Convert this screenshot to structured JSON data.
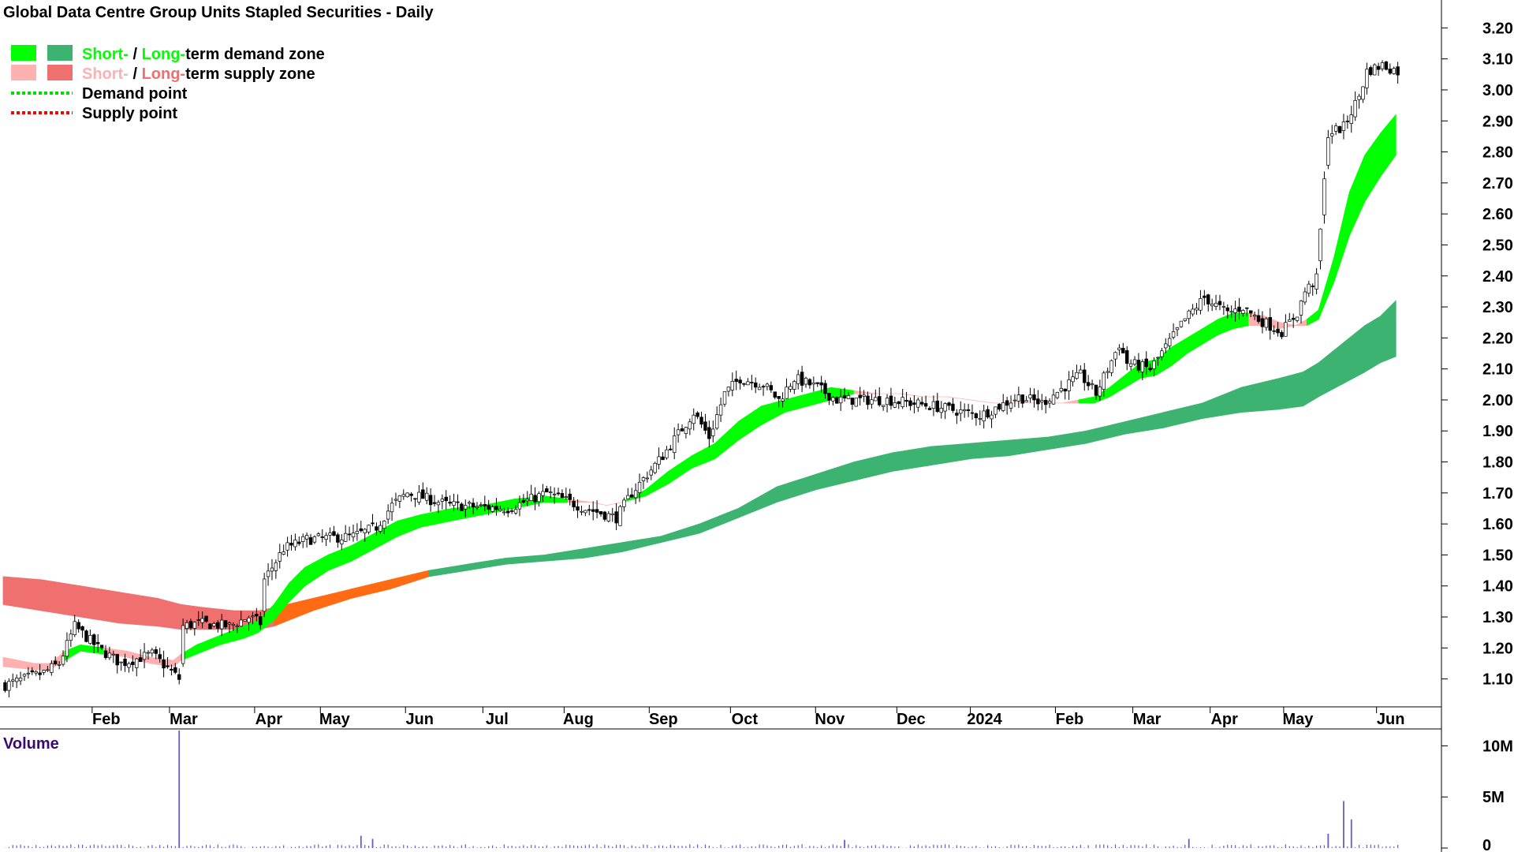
{
  "chart_data": {
    "type": "candlestick",
    "title": "Global Data Centre Group Units Stapled Securities - Daily",
    "price_axis": {
      "ticks": [
        1.1,
        1.2,
        1.3,
        1.4,
        1.5,
        1.6,
        1.7,
        1.8,
        1.9,
        2.0,
        2.1,
        2.2,
        2.3,
        2.4,
        2.5,
        2.6,
        2.7,
        2.8,
        2.9,
        3.0,
        3.1,
        3.2
      ],
      "tick_labels": [
        "1.10",
        "1.20",
        "1.30",
        "1.40",
        "1.50",
        "1.60",
        "1.70",
        "1.80",
        "1.90",
        "2.00",
        "2.10",
        "2.20",
        "2.30",
        "2.40",
        "2.50",
        "2.60",
        "2.70",
        "2.80",
        "2.90",
        "3.00",
        "3.10",
        "3.20"
      ],
      "range": [
        1.01,
        3.29
      ]
    },
    "time_axis": {
      "labels": [
        "Feb",
        "Mar",
        "Apr",
        "May",
        "Jun",
        "Jul",
        "Aug",
        "Sep",
        "Oct",
        "Nov",
        "Dec",
        "2024",
        "Feb",
        "Mar",
        "Apr",
        "May",
        "Jun"
      ],
      "label_pos": [
        23,
        43,
        65,
        82,
        104,
        124,
        145,
        167,
        188,
        210,
        231,
        250,
        272,
        292,
        312,
        331,
        355
      ],
      "bars": 362
    },
    "legend": {
      "position": "top-left",
      "items": [
        {
          "kind": "zone",
          "colors": [
            "#00ff00",
            "#3cb371"
          ],
          "parts": [
            {
              "text": "Short-",
              "color": "#00ff00"
            },
            {
              "text": " / ",
              "color": "#000000"
            },
            {
              "text": "Long-",
              "color": "#00ff00"
            },
            {
              "text": "term demand zone",
              "color": "#000000"
            }
          ]
        },
        {
          "kind": "zone",
          "colors": [
            "#ffb0b0",
            "#f07070"
          ],
          "parts": [
            {
              "text": "Short-",
              "color": "#ffb0b0"
            },
            {
              "text": " / ",
              "color": "#000000"
            },
            {
              "text": "Long-",
              "color": "#f07070"
            },
            {
              "text": "term supply zone",
              "color": "#000000"
            }
          ]
        },
        {
          "kind": "dotted",
          "color": "#00dd00",
          "parts": [
            {
              "text": "Demand point",
              "color": "#000000"
            }
          ]
        },
        {
          "kind": "dotted",
          "color": "#ff0000",
          "parts": [
            {
              "text": "Supply point",
              "color": "#000000"
            }
          ]
        }
      ]
    },
    "price_anchors": {
      "x": [
        0,
        10,
        14,
        18,
        24,
        30,
        38,
        45,
        46,
        50,
        58,
        63,
        66,
        67,
        72,
        78,
        90,
        96,
        100,
        104,
        115,
        130,
        140,
        150,
        158,
        162,
        170,
        178,
        182,
        186,
        190,
        196,
        200,
        204,
        210,
        215,
        222,
        228,
        240,
        252,
        262,
        268,
        278,
        282,
        288,
        290,
        296,
        300,
        305,
        310,
        316,
        320,
        324,
        330,
        334,
        336,
        339,
        342,
        346,
        350,
        352,
        356,
        360
      ],
      "close": [
        1.08,
        1.12,
        1.15,
        1.27,
        1.2,
        1.15,
        1.18,
        1.1,
        1.27,
        1.28,
        1.27,
        1.3,
        1.28,
        1.42,
        1.52,
        1.55,
        1.56,
        1.59,
        1.66,
        1.7,
        1.66,
        1.65,
        1.7,
        1.65,
        1.62,
        1.7,
        1.82,
        1.96,
        1.88,
        2.02,
        2.07,
        2.05,
        2.0,
        2.07,
        2.04,
        2.0,
        2.0,
        2.0,
        1.98,
        1.95,
        2.01,
        1.99,
        2.08,
        2.02,
        2.18,
        2.12,
        2.1,
        2.17,
        2.26,
        2.33,
        2.28,
        2.3,
        2.26,
        2.22,
        2.28,
        2.35,
        2.39,
        2.86,
        2.88,
        2.98,
        3.06,
        3.08,
        3.06
      ]
    },
    "bands": {
      "short_term": {
        "x": [
          0,
          8,
          12,
          16,
          20,
          26,
          32,
          38,
          44,
          46,
          50,
          56,
          62,
          66,
          70,
          74,
          78,
          84,
          90,
          96,
          102,
          108,
          116,
          124,
          132,
          140,
          146,
          152,
          156,
          160,
          166,
          172,
          178,
          184,
          190,
          196,
          202,
          208,
          214,
          220,
          226,
          232,
          238,
          244,
          250,
          256,
          262,
          268,
          274,
          278,
          282,
          286,
          290,
          294,
          298,
          302,
          306,
          310,
          314,
          318,
          322,
          326,
          330,
          334,
          337,
          340,
          344,
          348,
          352,
          356,
          360
        ],
        "upper": [
          1.17,
          1.15,
          1.15,
          1.19,
          1.21,
          1.2,
          1.19,
          1.17,
          1.16,
          1.18,
          1.21,
          1.24,
          1.27,
          1.29,
          1.34,
          1.41,
          1.46,
          1.5,
          1.53,
          1.57,
          1.61,
          1.63,
          1.65,
          1.66,
          1.68,
          1.69,
          1.68,
          1.67,
          1.66,
          1.67,
          1.71,
          1.77,
          1.82,
          1.86,
          1.93,
          1.98,
          2.0,
          2.02,
          2.04,
          2.03,
          2.02,
          2.02,
          2.01,
          2.01,
          2.0,
          1.99,
          1.99,
          1.99,
          1.99,
          2.0,
          2.01,
          2.04,
          2.08,
          2.12,
          2.13,
          2.17,
          2.2,
          2.23,
          2.26,
          2.28,
          2.28,
          2.27,
          2.25,
          2.24,
          2.26,
          2.29,
          2.46,
          2.67,
          2.79,
          2.86,
          2.92
        ],
        "lower": [
          1.14,
          1.13,
          1.13,
          1.16,
          1.19,
          1.18,
          1.17,
          1.15,
          1.14,
          1.16,
          1.18,
          1.21,
          1.23,
          1.25,
          1.29,
          1.35,
          1.4,
          1.45,
          1.48,
          1.52,
          1.56,
          1.59,
          1.61,
          1.63,
          1.65,
          1.67,
          1.67,
          1.67,
          1.66,
          1.67,
          1.69,
          1.73,
          1.78,
          1.81,
          1.87,
          1.92,
          1.96,
          1.98,
          2.0,
          2.02,
          2.02,
          2.02,
          2.01,
          2.01,
          2.0,
          1.99,
          1.99,
          1.99,
          1.99,
          1.99,
          1.99,
          2.01,
          2.04,
          2.07,
          2.08,
          2.11,
          2.15,
          2.18,
          2.21,
          2.23,
          2.24,
          2.24,
          2.23,
          2.24,
          2.24,
          2.26,
          2.38,
          2.53,
          2.64,
          2.72,
          2.79
        ],
        "state": [
          "s",
          "s",
          "s",
          "d",
          "d",
          "s",
          "s",
          "s",
          "s",
          "d",
          "d",
          "d",
          "d",
          "d",
          "d",
          "d",
          "d",
          "d",
          "d",
          "d",
          "d",
          "d",
          "d",
          "d",
          "d",
          "d",
          "s",
          "s",
          "s",
          "d",
          "d",
          "d",
          "d",
          "d",
          "d",
          "d",
          "d",
          "d",
          "d",
          "s",
          "s",
          "s",
          "s",
          "s",
          "s",
          "s",
          "s",
          "s",
          "s",
          "d",
          "d",
          "d",
          "d",
          "d",
          "d",
          "d",
          "d",
          "d",
          "d",
          "d",
          "s",
          "s",
          "s",
          "s",
          "d",
          "d",
          "d",
          "d",
          "d",
          "d",
          "d"
        ]
      },
      "long_term": {
        "x": [
          0,
          10,
          20,
          30,
          40,
          46,
          52,
          60,
          66,
          70,
          80,
          90,
          100,
          110,
          120,
          130,
          140,
          150,
          160,
          170,
          180,
          190,
          200,
          210,
          220,
          230,
          240,
          250,
          260,
          270,
          280,
          290,
          300,
          310,
          320,
          330,
          336,
          340,
          346,
          352,
          356,
          360
        ],
        "upper": [
          1.43,
          1.42,
          1.4,
          1.38,
          1.36,
          1.34,
          1.33,
          1.32,
          1.32,
          1.33,
          1.36,
          1.39,
          1.42,
          1.45,
          1.47,
          1.49,
          1.5,
          1.52,
          1.54,
          1.56,
          1.6,
          1.65,
          1.72,
          1.76,
          1.8,
          1.83,
          1.85,
          1.86,
          1.87,
          1.88,
          1.9,
          1.93,
          1.96,
          1.99,
          2.04,
          2.07,
          2.09,
          2.12,
          2.18,
          2.24,
          2.27,
          2.32
        ],
        "lower": [
          1.34,
          1.32,
          1.3,
          1.28,
          1.27,
          1.26,
          1.26,
          1.26,
          1.26,
          1.27,
          1.32,
          1.36,
          1.39,
          1.43,
          1.45,
          1.47,
          1.48,
          1.49,
          1.51,
          1.54,
          1.57,
          1.62,
          1.67,
          1.71,
          1.74,
          1.77,
          1.79,
          1.81,
          1.82,
          1.84,
          1.86,
          1.89,
          1.91,
          1.94,
          1.96,
          1.97,
          1.98,
          2.01,
          2.05,
          2.09,
          2.12,
          2.14
        ],
        "state": [
          "s",
          "s",
          "s",
          "s",
          "s",
          "s",
          "s",
          "s",
          "s",
          "t",
          "t",
          "t",
          "t",
          "d",
          "d",
          "d",
          "d",
          "d",
          "d",
          "d",
          "d",
          "d",
          "d",
          "d",
          "d",
          "d",
          "d",
          "d",
          "d",
          "d",
          "d",
          "d",
          "d",
          "d",
          "d",
          "d",
          "d",
          "d",
          "d",
          "d",
          "d",
          "d"
        ]
      },
      "colors": {
        "short_demand": "#00ff00",
        "short_supply": "#ffb0b0",
        "long_demand": "#3cb371",
        "long_supply": "#f07070",
        "transition": "#ff6a13"
      }
    },
    "volume": {
      "title": "Volume",
      "ticks": [
        0,
        5,
        10
      ],
      "tick_labels": [
        "0",
        "5M",
        "10M"
      ],
      "range": [
        0,
        11.5
      ],
      "color": "#6a5acd",
      "spikes": [
        {
          "x": 45,
          "value": 11.8
        },
        {
          "x": 92,
          "value": 1.2
        },
        {
          "x": 95,
          "value": 0.9
        },
        {
          "x": 217,
          "value": 0.8
        },
        {
          "x": 306,
          "value": 0.9
        },
        {
          "x": 342,
          "value": 1.4
        },
        {
          "x": 346,
          "value": 4.6
        },
        {
          "x": 348,
          "value": 2.8
        }
      ]
    }
  }
}
